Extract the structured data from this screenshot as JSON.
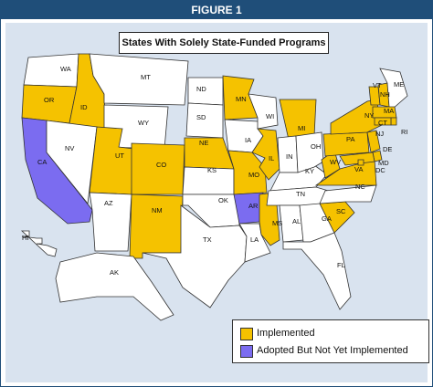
{
  "figure_label": "FIGURE 1",
  "title": "States With Solely State-Funded Programs",
  "colors": {
    "implemented": "#f5c200",
    "adopted": "#7b6cf0",
    "none": "#ffffff",
    "border": "#333333",
    "background": "#d9e3ef",
    "header": "#1f4e79"
  },
  "legend": {
    "implemented": "Implemented",
    "adopted": "Adopted But Not Yet Implemented"
  },
  "states": [
    {
      "abbr": "WA",
      "status": "none"
    },
    {
      "abbr": "OR",
      "status": "implemented"
    },
    {
      "abbr": "CA",
      "status": "adopted"
    },
    {
      "abbr": "ID",
      "status": "implemented"
    },
    {
      "abbr": "NV",
      "status": "none"
    },
    {
      "abbr": "MT",
      "status": "none"
    },
    {
      "abbr": "WY",
      "status": "none"
    },
    {
      "abbr": "UT",
      "status": "implemented"
    },
    {
      "abbr": "AZ",
      "status": "none"
    },
    {
      "abbr": "CO",
      "status": "implemented"
    },
    {
      "abbr": "NM",
      "status": "implemented"
    },
    {
      "abbr": "ND",
      "status": "none"
    },
    {
      "abbr": "SD",
      "status": "none"
    },
    {
      "abbr": "NE",
      "status": "implemented"
    },
    {
      "abbr": "KS",
      "status": "none"
    },
    {
      "abbr": "OK",
      "status": "none"
    },
    {
      "abbr": "TX",
      "status": "none"
    },
    {
      "abbr": "MN",
      "status": "implemented"
    },
    {
      "abbr": "IA",
      "status": "none"
    },
    {
      "abbr": "MO",
      "status": "implemented"
    },
    {
      "abbr": "AR",
      "status": "adopted"
    },
    {
      "abbr": "LA",
      "status": "none"
    },
    {
      "abbr": "WI",
      "status": "none"
    },
    {
      "abbr": "IL",
      "status": "implemented"
    },
    {
      "abbr": "MS",
      "status": "implemented"
    },
    {
      "abbr": "MI",
      "status": "implemented"
    },
    {
      "abbr": "IN",
      "status": "none"
    },
    {
      "abbr": "KY",
      "status": "none"
    },
    {
      "abbr": "TN",
      "status": "none"
    },
    {
      "abbr": "AL",
      "status": "none"
    },
    {
      "abbr": "OH",
      "status": "none"
    },
    {
      "abbr": "GA",
      "status": "none"
    },
    {
      "abbr": "FL",
      "status": "none"
    },
    {
      "abbr": "SC",
      "status": "implemented"
    },
    {
      "abbr": "NC",
      "status": "none"
    },
    {
      "abbr": "VA",
      "status": "implemented"
    },
    {
      "abbr": "WV",
      "status": "implemented"
    },
    {
      "abbr": "PA",
      "status": "implemented"
    },
    {
      "abbr": "NY",
      "status": "implemented"
    },
    {
      "abbr": "VT",
      "status": "implemented"
    },
    {
      "abbr": "NH",
      "status": "implemented"
    },
    {
      "abbr": "ME",
      "status": "none"
    },
    {
      "abbr": "MA",
      "status": "implemented"
    },
    {
      "abbr": "RI",
      "status": "implemented"
    },
    {
      "abbr": "CT",
      "status": "implemented"
    },
    {
      "abbr": "NJ",
      "status": "implemented"
    },
    {
      "abbr": "DE",
      "status": "implemented"
    },
    {
      "abbr": "MD",
      "status": "implemented"
    },
    {
      "abbr": "DC",
      "status": "implemented"
    },
    {
      "abbr": "AK",
      "status": "none"
    },
    {
      "abbr": "HI",
      "status": "none"
    }
  ]
}
